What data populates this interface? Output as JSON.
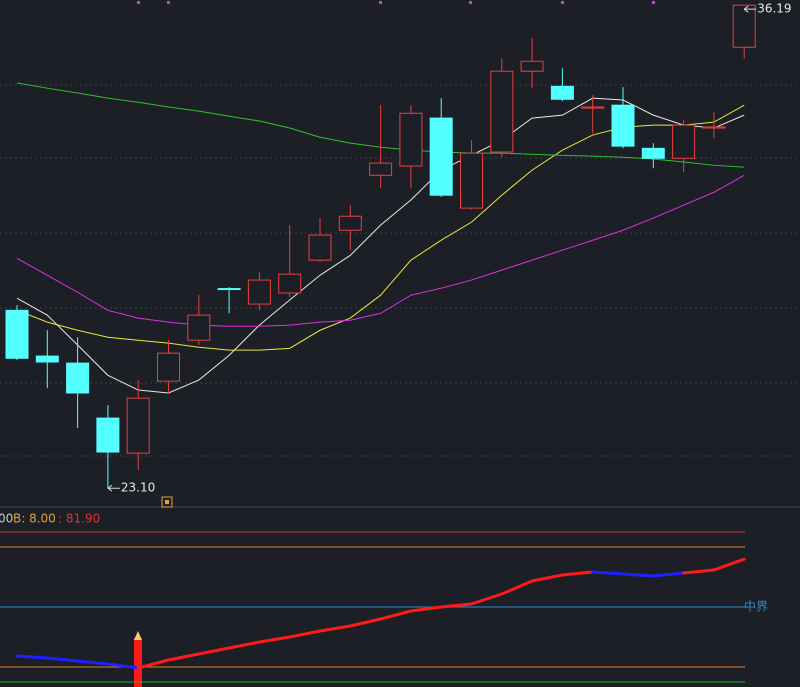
{
  "chart_data": [
    {
      "type": "candlestick",
      "categories": [
        null,
        null,
        null,
        null,
        null,
        null,
        null,
        null,
        null,
        null,
        null,
        null,
        null,
        null,
        null,
        null,
        null,
        null,
        null,
        null,
        null,
        null,
        null,
        null,
        null
      ],
      "open": [
        27.92,
        26.68,
        26.49,
        25.0,
        24.05,
        26.0,
        27.11,
        28.51,
        28.09,
        28.39,
        29.28,
        30.09,
        31.58,
        31.83,
        33.13,
        30.69,
        32.21,
        34.4,
        33.99,
        33.4,
        33.48,
        32.31,
        32.04,
        32.86,
        35.05
      ],
      "high": [
        28.06,
        27.38,
        27.19,
        25.35,
        26.03,
        27.11,
        28.33,
        28.55,
        28.95,
        30.23,
        30.42,
        30.77,
        33.48,
        33.48,
        33.67,
        32.53,
        34.75,
        35.3,
        34.48,
        33.75,
        33.97,
        32.45,
        33.07,
        33.29,
        36.19
      ],
      "low": [
        26.57,
        25.81,
        24.73,
        23.1,
        23.59,
        25.68,
        26.98,
        27.84,
        27.92,
        28.28,
        29.23,
        29.55,
        31.23,
        31.23,
        30.99,
        30.66,
        32.07,
        33.94,
        33.59,
        32.72,
        32.31,
        31.77,
        31.66,
        32.59,
        34.75
      ],
      "close": [
        26.62,
        26.52,
        25.68,
        24.08,
        25.54,
        26.76,
        27.79,
        28.49,
        28.74,
        28.9,
        29.96,
        30.47,
        31.91,
        33.26,
        31.04,
        32.18,
        34.4,
        34.67,
        33.64,
        33.43,
        32.37,
        32.04,
        32.94,
        32.89,
        36.19
      ],
      "up_color": "#e84040",
      "down_color": "#54ffff",
      "lines": [
        {
          "color": "#e8e8e8",
          "values": [
            28.25,
            27.79,
            26.98,
            26.16,
            25.76,
            25.68,
            26.03,
            26.7,
            27.52,
            28.2,
            28.87,
            29.41,
            30.23,
            30.91,
            31.72,
            32.12,
            32.53,
            33.13,
            33.21,
            33.67,
            33.62,
            33.21,
            32.94,
            32.86,
            33.21
          ]
        },
        {
          "color": "#e8e840",
          "values": [
            27.92,
            27.6,
            27.38,
            27.19,
            27.11,
            27.03,
            26.92,
            26.84,
            26.84,
            26.89,
            27.38,
            27.71,
            28.33,
            29.28,
            29.82,
            30.31,
            31.04,
            31.72,
            32.26,
            32.67,
            32.88,
            32.94,
            32.94,
            33.02,
            33.48
          ]
        },
        {
          "color": "#e030e0",
          "values": [
            29.33,
            28.87,
            28.41,
            27.92,
            27.71,
            27.6,
            27.52,
            27.49,
            27.49,
            27.52,
            27.6,
            27.65,
            27.84,
            28.33,
            28.52,
            28.74,
            29.01,
            29.28,
            29.55,
            29.82,
            30.09,
            30.42,
            30.77,
            31.12,
            31.58
          ]
        },
        {
          "color": "#30c030",
          "values": [
            34.08,
            33.94,
            33.81,
            33.67,
            33.56,
            33.43,
            33.32,
            33.18,
            33.05,
            32.86,
            32.61,
            32.45,
            32.34,
            32.26,
            32.21,
            32.18,
            32.18,
            32.15,
            32.12,
            32.1,
            32.07,
            32.02,
            31.94,
            31.85,
            31.8
          ]
        }
      ],
      "ylim": [
        22.78,
        36.33
      ],
      "annotations": [
        {
          "value": 36.19,
          "label": "36.19"
        },
        {
          "value": 23.1,
          "label": "23.10"
        }
      ]
    },
    {
      "type": "line",
      "header": [
        "00",
        "B: 8.00",
        ": 81.90"
      ],
      "categories": [
        null,
        null,
        null,
        null,
        null,
        null,
        null,
        null,
        null,
        null,
        null,
        null,
        null,
        null,
        null,
        null,
        null,
        null,
        null,
        null,
        null,
        null,
        null,
        null,
        null
      ],
      "values": [
        17.33,
        16,
        14,
        12,
        9.33,
        14.67,
        18.67,
        22.67,
        26.67,
        30,
        34,
        37.33,
        42,
        47.33,
        50,
        52,
        58.67,
        67.33,
        71.33,
        73.33,
        72,
        70.67,
        72.67,
        74.67,
        81.9
      ],
      "point_colors": [
        "#2020ff",
        "#2020ff",
        "#2020ff",
        "#2020ff",
        "#2020ff",
        "#ff1a1a",
        "#ff1a1a",
        "#ff1a1a",
        "#ff1a1a",
        "#ff1a1a",
        "#ff1a1a",
        "#ff1a1a",
        "#ff1a1a",
        "#ff1a1a",
        "#ff1a1a",
        "#ff1a1a",
        "#ff1a1a",
        "#ff1a1a",
        "#ff1a1a",
        "#ff1a1a",
        "#2020ff",
        "#2020ff",
        "#2020ff",
        "#ff1a1a",
        "#ff1a1a"
      ],
      "levels": [
        {
          "value": 100,
          "color": "#d03030"
        },
        {
          "value": 90,
          "color": "#e08030"
        },
        {
          "value": 50,
          "color": "#2a8ad0",
          "label": "中界"
        },
        {
          "value": 10,
          "color": "#e08030"
        },
        {
          "value": 0,
          "color": "#20b020"
        }
      ],
      "ylim": [
        -3.33,
        114.67
      ]
    }
  ]
}
